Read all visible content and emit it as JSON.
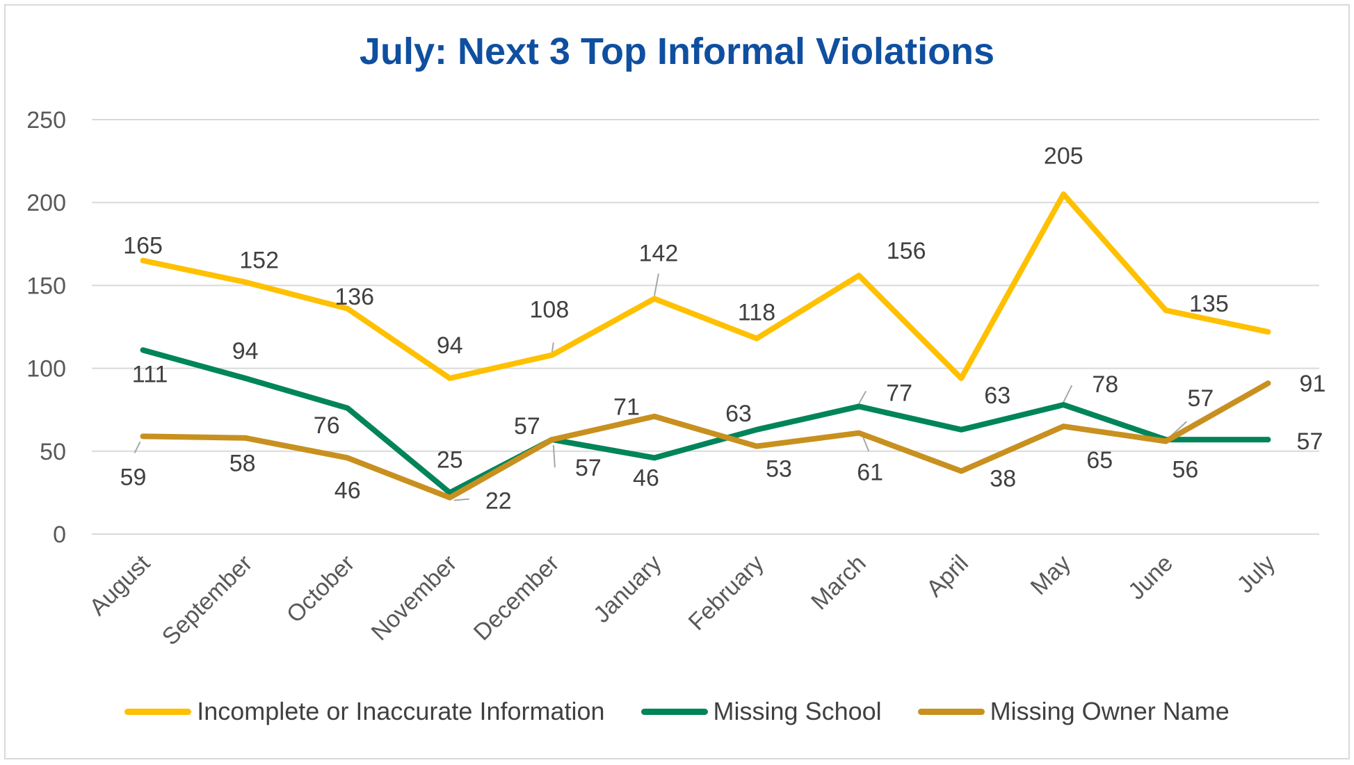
{
  "chart_data": {
    "type": "line",
    "title": "July: Next 3 Top Informal Violations",
    "xlabel": "",
    "ylabel": "",
    "ylim": [
      0,
      250
    ],
    "yticks": [
      "0",
      "50",
      "100",
      "150",
      "200",
      "250"
    ],
    "grid": true,
    "legend": "bottom",
    "categories": [
      "August",
      "September",
      "October",
      "November",
      "December",
      "January",
      "February",
      "March",
      "April",
      "May",
      "June",
      "July"
    ],
    "series": [
      {
        "name": "Incomplete or Inaccurate Information",
        "color": "#ffc000",
        "values": [
          165,
          152,
          136,
          94,
          108,
          142,
          118,
          156,
          94,
          205,
          135,
          122
        ],
        "labels": [
          "165",
          "152",
          "136",
          "94",
          "108",
          "142",
          "118",
          "156",
          "",
          "205",
          "135",
          ""
        ]
      },
      {
        "name": "Missing School",
        "color": "#00845a",
        "values": [
          111,
          94,
          76,
          25,
          57,
          46,
          63,
          77,
          63,
          78,
          57,
          57
        ],
        "labels": [
          "111",
          "94",
          "76",
          "25",
          "57",
          "46",
          "63",
          "77",
          "63",
          "78",
          "57",
          "57"
        ]
      },
      {
        "name": "Missing Owner Name",
        "color": "#c8901f",
        "values": [
          59,
          58,
          46,
          22,
          57,
          71,
          53,
          61,
          38,
          65,
          56,
          91
        ],
        "labels": [
          "59",
          "58",
          "46",
          "22",
          "57",
          "71",
          "53",
          "61",
          "38",
          "65",
          "56",
          "91"
        ]
      }
    ]
  }
}
